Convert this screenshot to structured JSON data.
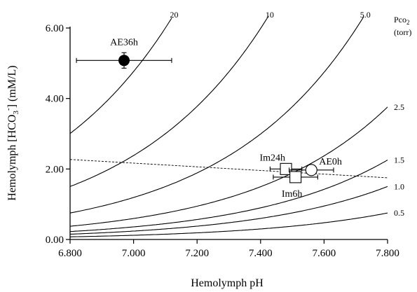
{
  "chart_data": {
    "type": "line",
    "xlabel": "Hemolymph pH",
    "ylabel": "Hemolymph [HCO3-]  (mM/L)",
    "ylabel_main": "Hemolymph [HCO",
    "ylabel_sub": "3",
    "ylabel_sup": "-",
    "ylabel_tail": "]  (mM/L)",
    "xlim": [
      6.8,
      7.8
    ],
    "ylim": [
      0.0,
      6.0
    ],
    "x_ticks": [
      "6.800",
      "7.000",
      "7.200",
      "7.400",
      "7.600",
      "7.800"
    ],
    "y_ticks": [
      "0.00",
      "2.00",
      "4.00",
      "6.00"
    ],
    "grid": false,
    "pco2_header": "Pco",
    "pco2_sub": "2",
    "pco2_unit": "(torr)",
    "isopleths": [
      {
        "name": "20",
        "pco2": 20,
        "pk": 6.1
      },
      {
        "name": "10",
        "pco2": 10,
        "pk": 6.1
      },
      {
        "name": "5.0",
        "pco2": 5.0,
        "pk": 6.1
      },
      {
        "name": "2.5",
        "pco2": 2.5,
        "pk": 6.1
      },
      {
        "name": "1.5",
        "pco2": 1.5,
        "pk": 6.1
      },
      {
        "name": "1.0",
        "pco2": 1.0,
        "pk": 6.1
      },
      {
        "name": "0.5",
        "pco2": 0.5,
        "pk": 6.1
      }
    ],
    "buffer_line": {
      "x": [
        6.8,
        7.8
      ],
      "y": [
        2.27,
        1.75
      ],
      "style": "dashed"
    },
    "points": [
      {
        "label": "AE36h",
        "x": 6.97,
        "y": 5.08,
        "xerr": 0.15,
        "yerr": 0.22,
        "marker": "circle-filled"
      },
      {
        "label": "Im24h",
        "x": 7.48,
        "y": 2.0,
        "xerr": 0.05,
        "yerr": 0.1,
        "marker": "square-open"
      },
      {
        "label": "Im6h",
        "x": 7.51,
        "y": 1.77,
        "xerr": 0.07,
        "yerr": 0.1,
        "marker": "square-open"
      },
      {
        "label": "AE0h",
        "x": 7.56,
        "y": 1.97,
        "xerr": 0.07,
        "yerr": 0.08,
        "marker": "circle-open"
      }
    ]
  }
}
